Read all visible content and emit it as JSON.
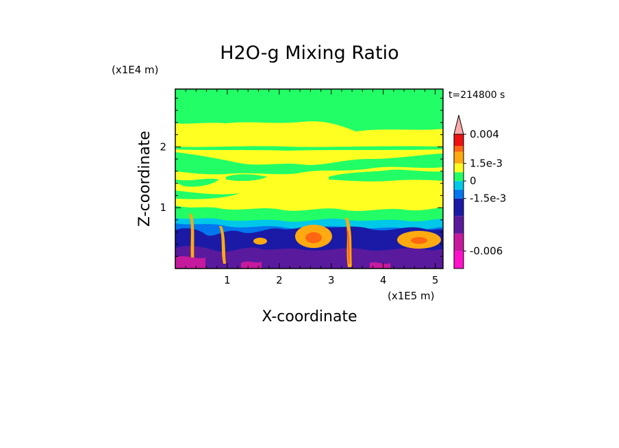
{
  "chart_data": {
    "type": "heatmap",
    "title": "H2O-g Mixing Ratio",
    "xlabel": "X-coordinate",
    "ylabel": "Z-coordinate",
    "x_unit": "(x1E5 m)",
    "y_unit": "(x1E4 m)",
    "time_label": "t=214800 s",
    "xlim": [
      0,
      5.15
    ],
    "ylim": [
      0,
      2.95
    ],
    "x_ticks": [
      "1",
      "2",
      "3",
      "4",
      "5"
    ],
    "y_ticks": [
      "1",
      "2"
    ],
    "colorbar": {
      "levels": [
        -0.0075,
        -0.006,
        -0.0045,
        -0.003,
        -0.0015,
        -0.00075,
        0,
        0.00075,
        0.0015,
        0.0025,
        0.003,
        0.004
      ],
      "tick_labels": [
        "0.004",
        "1.5e-3",
        "0",
        "-1.5e-3",
        "-0.006"
      ],
      "colors": [
        "#ff11cc",
        "#c61a9e",
        "#5a1a9e",
        "#1a1aa6",
        "#0077ee",
        "#00c8e8",
        "#22ff66",
        "#ffff22",
        "#ffaa11",
        "#ff6611",
        "#ee1111",
        "#ffaaaa"
      ],
      "extend": "max"
    },
    "field_description_bands": [
      {
        "z_range": [
          2.2,
          2.95
        ],
        "dominant": "0 to 1.5e-3"
      },
      {
        "z_range": [
          1.0,
          2.2
        ],
        "dominant": "0 to 1.5e-3"
      },
      {
        "z_range": [
          0.3,
          0.9
        ],
        "dominant": "-1.5e-3 to 0"
      },
      {
        "z_range": [
          0.0,
          0.3
        ],
        "dominant": "-0.006"
      }
    ]
  }
}
